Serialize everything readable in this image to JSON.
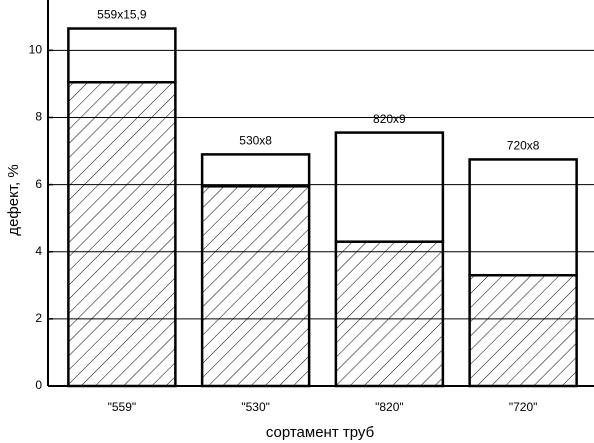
{
  "chart_data": {
    "type": "stacked_bar",
    "xlabel": "сортамент труб",
    "ylabel": "дефект, %",
    "categories": [
      "\"559\"",
      "\"530\"",
      "\"820\"",
      "\"720\""
    ],
    "series": [
      {
        "color": "#000000",
        "hatch": true,
        "values": [
          9.05,
          5.95,
          4.3,
          3.3
        ]
      },
      {
        "color": "#000000",
        "hatch": false,
        "values": [
          1.6,
          0.95,
          3.25,
          3.45
        ]
      }
    ],
    "annotations": [
      "559x15,9",
      "530x8",
      "820x9",
      "720x8"
    ],
    "ylim": [
      0,
      11.5
    ],
    "yticks": [
      0,
      2,
      4,
      6,
      8,
      10
    ],
    "grid": true
  }
}
